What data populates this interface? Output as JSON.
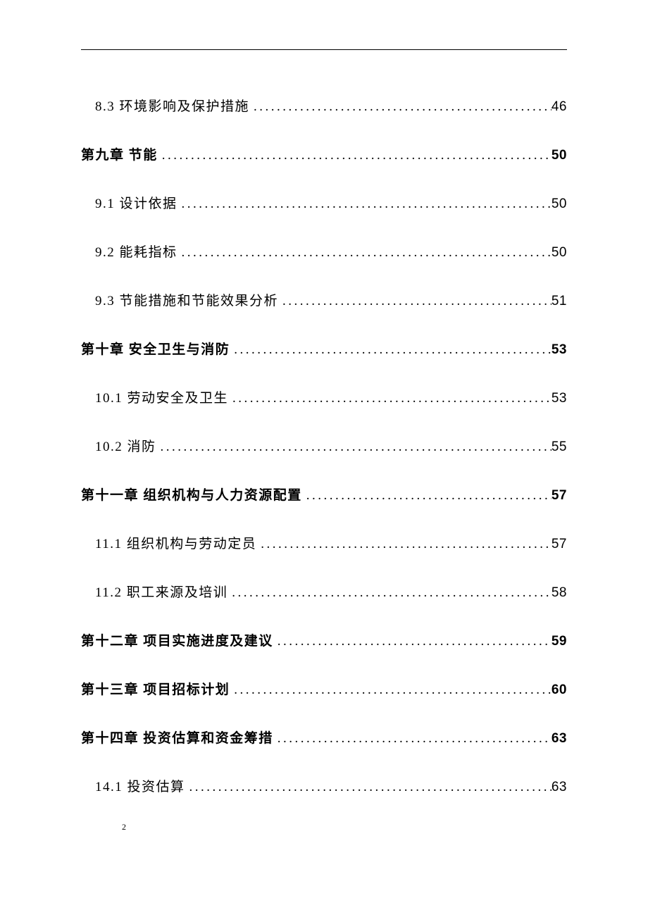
{
  "tocEntries": [
    {
      "type": "section",
      "number": "8.3",
      "title": "环境影响及保护措施",
      "page": "46"
    },
    {
      "type": "chapter",
      "number": "第九章",
      "title": "节能",
      "page": "50"
    },
    {
      "type": "section",
      "number": "9.1",
      "title": "设计依据",
      "page": "50"
    },
    {
      "type": "section",
      "number": "9.2",
      "title": "能耗指标",
      "page": "50"
    },
    {
      "type": "section",
      "number": "9.3",
      "title": "节能措施和节能效果分析",
      "page": "51"
    },
    {
      "type": "chapter",
      "number": "第十章",
      "title": "安全卫生与消防",
      "page": "53"
    },
    {
      "type": "section",
      "number": "10.1",
      "title": "劳动安全及卫生",
      "page": "53"
    },
    {
      "type": "section",
      "number": "10.2",
      "title": "消防",
      "page": "55"
    },
    {
      "type": "chapter",
      "number": "第十一章",
      "title": "组织机构与人力资源配置",
      "page": "57"
    },
    {
      "type": "section",
      "number": "11.1",
      "title": "组织机构与劳动定员",
      "page": "57"
    },
    {
      "type": "section",
      "number": "11.2",
      "title": "职工来源及培训",
      "page": "58"
    },
    {
      "type": "chapter",
      "number": "第十二章",
      "title": "项目实施进度及建议",
      "page": "59"
    },
    {
      "type": "chapter",
      "number": "第十三章",
      "title": "项目招标计划",
      "page": "60"
    },
    {
      "type": "chapter",
      "number": "第十四章",
      "title": "投资估算和资金筹措",
      "page": "63"
    },
    {
      "type": "section",
      "number": "14.1",
      "title": "投资估算",
      "page": "63"
    }
  ],
  "pageNumber": "2",
  "styling": {
    "pageWidth": 920,
    "pageHeight": 1302,
    "backgroundColor": "#ffffff",
    "textColor": "#000000",
    "fontSize": 19,
    "chapterFontWeight": "bold",
    "sectionFontWeight": "normal",
    "lineSpacing": 42,
    "sectionIndent": 20,
    "dotLeaderChar": ".",
    "headerLineColor": "#000000",
    "headerLineWidth": 1.5,
    "marginTop": 70,
    "marginLeft": 115,
    "marginRight": 115
  }
}
